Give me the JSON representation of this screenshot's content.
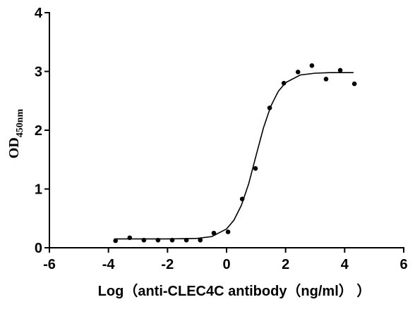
{
  "chart_data": {
    "type": "scatter",
    "x_label": "Log（anti-CLEC4C antibody（ng/ml） ）",
    "y_label": {
      "main": "OD",
      "sub": "450nm"
    },
    "xlim": [
      -6,
      6
    ],
    "xticks": [
      -6,
      -4,
      -2,
      0,
      2,
      4,
      6
    ],
    "ylim": [
      0,
      4
    ],
    "yticks": [
      0,
      1,
      2,
      3,
      4
    ],
    "series": [
      {
        "type": "scatter",
        "color": "#000000",
        "x": [
          -3.76,
          -3.28,
          -2.8,
          -2.32,
          -1.84,
          -1.36,
          -0.89,
          -0.43,
          0.05,
          0.53,
          0.98,
          1.46,
          1.94,
          2.42,
          2.89,
          3.37,
          3.85,
          4.33
        ],
        "values": [
          0.12,
          0.17,
          0.13,
          0.13,
          0.13,
          0.13,
          0.13,
          0.25,
          0.27,
          0.83,
          1.35,
          2.38,
          2.8,
          2.99,
          3.1,
          2.87,
          3.02,
          2.79
        ]
      },
      {
        "type": "line",
        "color": "#000000",
        "x": [
          -3.8,
          -3,
          -2,
          -1,
          -0.5,
          0,
          0.25,
          0.5,
          0.75,
          1,
          1.25,
          1.5,
          1.75,
          2,
          2.5,
          3,
          3.5,
          4.3
        ],
        "values": [
          0.15,
          0.15,
          0.15,
          0.16,
          0.19,
          0.32,
          0.47,
          0.72,
          1.09,
          1.57,
          2.04,
          2.41,
          2.66,
          2.81,
          2.94,
          2.97,
          2.98,
          2.98
        ]
      }
    ]
  }
}
